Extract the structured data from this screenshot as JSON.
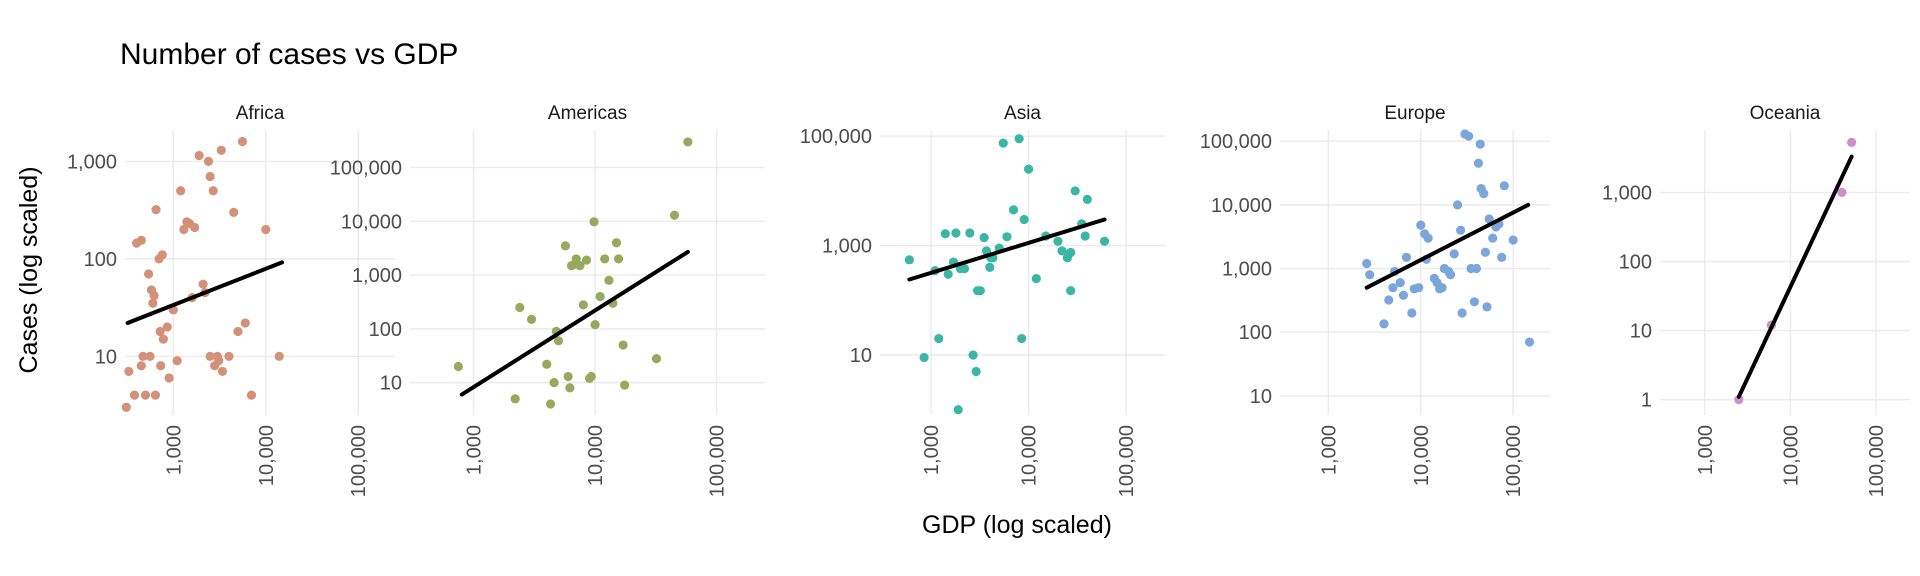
{
  "chart_data": {
    "type": "scatter",
    "title": "Number of cases vs GDP",
    "xlabel": "GDP (log scaled)",
    "ylabel": "Cases (log scaled)",
    "x_scale": "log10",
    "y_scale": "log10",
    "xlim": [
      300,
      250000
    ],
    "x_ticks": [
      1000,
      10000,
      100000
    ],
    "x_tick_labels": [
      "1,000",
      "10,000",
      "100,000"
    ],
    "grid": true,
    "legend": "none",
    "panels": [
      {
        "name": "Africa",
        "color": "#d4917a",
        "ylim": [
          2.5,
          2100
        ],
        "y_ticks": [
          10,
          100,
          1000
        ],
        "y_tick_labels": [
          "10",
          "100",
          "1,000"
        ],
        "trend": [
          [
            320,
            22
          ],
          [
            15000,
            92
          ]
        ],
        "points": [
          [
            310,
            3
          ],
          [
            330,
            7
          ],
          [
            380,
            4
          ],
          [
            400,
            145
          ],
          [
            450,
            155
          ],
          [
            450,
            8
          ],
          [
            470,
            10
          ],
          [
            500,
            4
          ],
          [
            540,
            70
          ],
          [
            560,
            10
          ],
          [
            580,
            48
          ],
          [
            600,
            35
          ],
          [
            620,
            42
          ],
          [
            640,
            4
          ],
          [
            650,
            320
          ],
          [
            700,
            100
          ],
          [
            720,
            18
          ],
          [
            730,
            8
          ],
          [
            760,
            110
          ],
          [
            780,
            15
          ],
          [
            860,
            20
          ],
          [
            900,
            6
          ],
          [
            1000,
            30
          ],
          [
            1100,
            9
          ],
          [
            1200,
            500
          ],
          [
            1300,
            200
          ],
          [
            1400,
            240
          ],
          [
            1500,
            230
          ],
          [
            1600,
            40
          ],
          [
            1700,
            210
          ],
          [
            1900,
            1150
          ],
          [
            2100,
            55
          ],
          [
            2200,
            45
          ],
          [
            2400,
            1000
          ],
          [
            2500,
            700
          ],
          [
            2500,
            10
          ],
          [
            2700,
            500
          ],
          [
            2800,
            8
          ],
          [
            3000,
            10
          ],
          [
            3100,
            9
          ],
          [
            3300,
            1300
          ],
          [
            3400,
            7
          ],
          [
            4000,
            10
          ],
          [
            4500,
            300
          ],
          [
            5000,
            18
          ],
          [
            5600,
            1600
          ],
          [
            6000,
            22
          ],
          [
            7000,
            4
          ],
          [
            10000,
            200
          ],
          [
            14000,
            10
          ]
        ]
      },
      {
        "name": "Americas",
        "color": "#97a95d",
        "ylim": [
          2.5,
          500000
        ],
        "y_ticks": [
          10,
          100,
          1000,
          10000,
          100000
        ],
        "y_tick_labels": [
          "10",
          "100",
          "1,000",
          "10,000",
          "100,000"
        ],
        "trend": [
          [
            800,
            6
          ],
          [
            58000,
            2700
          ]
        ],
        "points": [
          [
            750,
            20
          ],
          [
            2200,
            5
          ],
          [
            2400,
            250
          ],
          [
            3000,
            150
          ],
          [
            4000,
            22
          ],
          [
            4300,
            4
          ],
          [
            4600,
            10
          ],
          [
            4800,
            90
          ],
          [
            5000,
            60
          ],
          [
            5700,
            3500
          ],
          [
            6000,
            13
          ],
          [
            6200,
            8
          ],
          [
            6400,
            1500
          ],
          [
            6800,
            1600
          ],
          [
            7000,
            2000
          ],
          [
            7500,
            1500
          ],
          [
            8000,
            280
          ],
          [
            8500,
            1900
          ],
          [
            9000,
            12
          ],
          [
            9300,
            13
          ],
          [
            9800,
            9800
          ],
          [
            10000,
            120
          ],
          [
            11000,
            400
          ],
          [
            12000,
            2000
          ],
          [
            13000,
            800
          ],
          [
            14000,
            300
          ],
          [
            15000,
            4000
          ],
          [
            15600,
            2000
          ],
          [
            17000,
            50
          ],
          [
            17500,
            9
          ],
          [
            32000,
            28
          ],
          [
            45000,
            13000
          ],
          [
            58000,
            300000
          ]
        ]
      },
      {
        "name": "Asia",
        "color": "#3bb6a5",
        "ylim": [
          0.8,
          130000
        ],
        "y_ticks": [
          10,
          1000,
          100000
        ],
        "y_tick_labels": [
          "10",
          "1,000",
          "100,000"
        ],
        "trend": [
          [
            600,
            240
          ],
          [
            60000,
            3000
          ]
        ],
        "points": [
          [
            600,
            550
          ],
          [
            850,
            9
          ],
          [
            1100,
            350
          ],
          [
            1200,
            20
          ],
          [
            1400,
            1650
          ],
          [
            1500,
            300
          ],
          [
            1700,
            500
          ],
          [
            1800,
            1700
          ],
          [
            1900,
            1
          ],
          [
            2000,
            380
          ],
          [
            2200,
            380
          ],
          [
            2500,
            1700
          ],
          [
            2700,
            10
          ],
          [
            2900,
            5
          ],
          [
            3000,
            150
          ],
          [
            3200,
            150
          ],
          [
            3500,
            1400
          ],
          [
            3700,
            800
          ],
          [
            4000,
            400
          ],
          [
            4100,
            600
          ],
          [
            4300,
            600
          ],
          [
            5000,
            900
          ],
          [
            5500,
            75000
          ],
          [
            6000,
            1450
          ],
          [
            7000,
            4500
          ],
          [
            8000,
            90000
          ],
          [
            8500,
            20
          ],
          [
            9000,
            3000
          ],
          [
            10000,
            25000
          ],
          [
            12000,
            250
          ],
          [
            15000,
            1500
          ],
          [
            20000,
            1200
          ],
          [
            22000,
            800
          ],
          [
            25000,
            600
          ],
          [
            27000,
            150
          ],
          [
            27000,
            750
          ],
          [
            30000,
            10000
          ],
          [
            35000,
            2500
          ],
          [
            38000,
            1500
          ],
          [
            40000,
            7000
          ],
          [
            60000,
            1200
          ]
        ]
      },
      {
        "name": "Europe",
        "color": "#7aa6dc",
        "ylim": [
          5,
          150000
        ],
        "y_ticks": [
          10,
          100,
          1000,
          10000,
          100000
        ],
        "y_tick_labels": [
          "10",
          "100",
          "1,000",
          "10,000",
          "100,000"
        ],
        "trend": [
          [
            2600,
            500
          ],
          [
            145000,
            10000
          ]
        ],
        "points": [
          [
            2600,
            1200
          ],
          [
            2800,
            800
          ],
          [
            4000,
            135
          ],
          [
            4500,
            320
          ],
          [
            5000,
            500
          ],
          [
            5200,
            900
          ],
          [
            6000,
            600
          ],
          [
            6500,
            380
          ],
          [
            7000,
            1500
          ],
          [
            8000,
            200
          ],
          [
            8500,
            480
          ],
          [
            9500,
            500
          ],
          [
            10000,
            4800
          ],
          [
            11000,
            3500
          ],
          [
            11500,
            1400
          ],
          [
            12000,
            3000
          ],
          [
            14000,
            700
          ],
          [
            15000,
            600
          ],
          [
            16000,
            480
          ],
          [
            17000,
            500
          ],
          [
            18000,
            1000
          ],
          [
            20000,
            900
          ],
          [
            21000,
            800
          ],
          [
            23000,
            1700
          ],
          [
            25000,
            10000
          ],
          [
            27000,
            4000
          ],
          [
            28000,
            200
          ],
          [
            30000,
            130000
          ],
          [
            33000,
            120000
          ],
          [
            35000,
            1000
          ],
          [
            38000,
            300
          ],
          [
            40000,
            1000
          ],
          [
            42000,
            45000
          ],
          [
            44000,
            90000
          ],
          [
            45000,
            18000
          ],
          [
            48000,
            15000
          ],
          [
            50000,
            1800
          ],
          [
            52000,
            250
          ],
          [
            55000,
            6000
          ],
          [
            60000,
            3000
          ],
          [
            65000,
            4500
          ],
          [
            70000,
            5000
          ],
          [
            75000,
            1500
          ],
          [
            80000,
            20000
          ],
          [
            100000,
            2800
          ],
          [
            150000,
            70
          ]
        ]
      },
      {
        "name": "Oceania",
        "color": "#cd8fcc",
        "ylim": [
          0.6,
          8000
        ],
        "y_ticks": [
          1,
          10,
          100,
          1000
        ],
        "y_tick_labels": [
          "1",
          "10",
          "100",
          "1,000"
        ],
        "trend": [
          [
            2500,
            1.1
          ],
          [
            52000,
            3300
          ]
        ],
        "points": [
          [
            2500,
            1
          ],
          [
            6000,
            12
          ],
          [
            40000,
            1000
          ],
          [
            52000,
            5300
          ]
        ]
      }
    ]
  }
}
